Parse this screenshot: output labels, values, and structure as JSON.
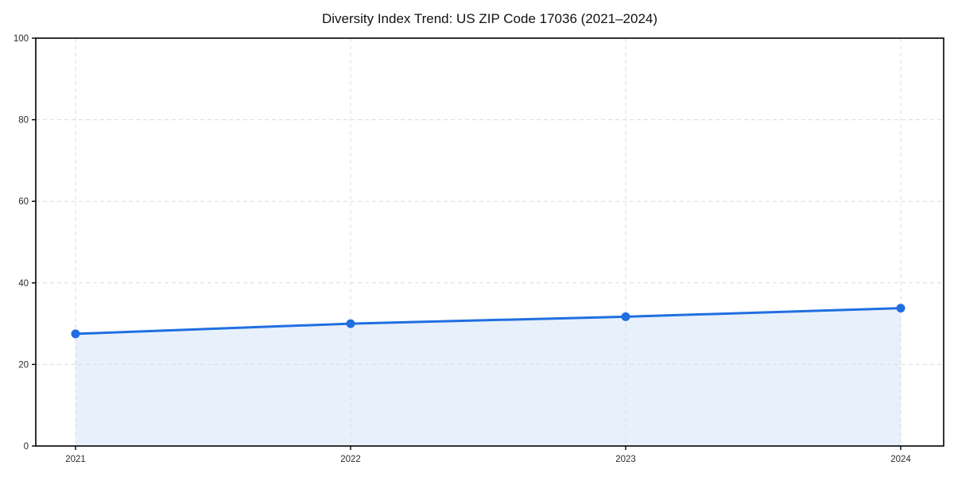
{
  "chart_data": {
    "type": "line",
    "title": "Diversity Index Trend: US ZIP Code 17036 (2021–2024)",
    "categories": [
      "2021",
      "2022",
      "2023",
      "2024"
    ],
    "x": [
      2021,
      2022,
      2023,
      2024
    ],
    "series": [
      {
        "name": "Diversity Index",
        "values": [
          27.5,
          30.0,
          31.7,
          33.8
        ]
      }
    ],
    "xlabel": "",
    "ylabel": "",
    "ylim": [
      0,
      100
    ],
    "y_ticks": [
      0,
      20,
      40,
      60,
      80,
      100
    ],
    "grid": "both-dashed",
    "legend": "none",
    "area_fill": true,
    "marker": "circle",
    "colors": {
      "line": "#1f6fe0",
      "marker": "#1f6fe0",
      "area_fill": "#1f6fe0",
      "area_fill_opacity": "0.10",
      "grid": "#dcdcdc",
      "spine": "#000000",
      "tick": "#000000",
      "tick_label": "#2b2b2b",
      "title": "#111111",
      "background": "#ffffff"
    }
  }
}
